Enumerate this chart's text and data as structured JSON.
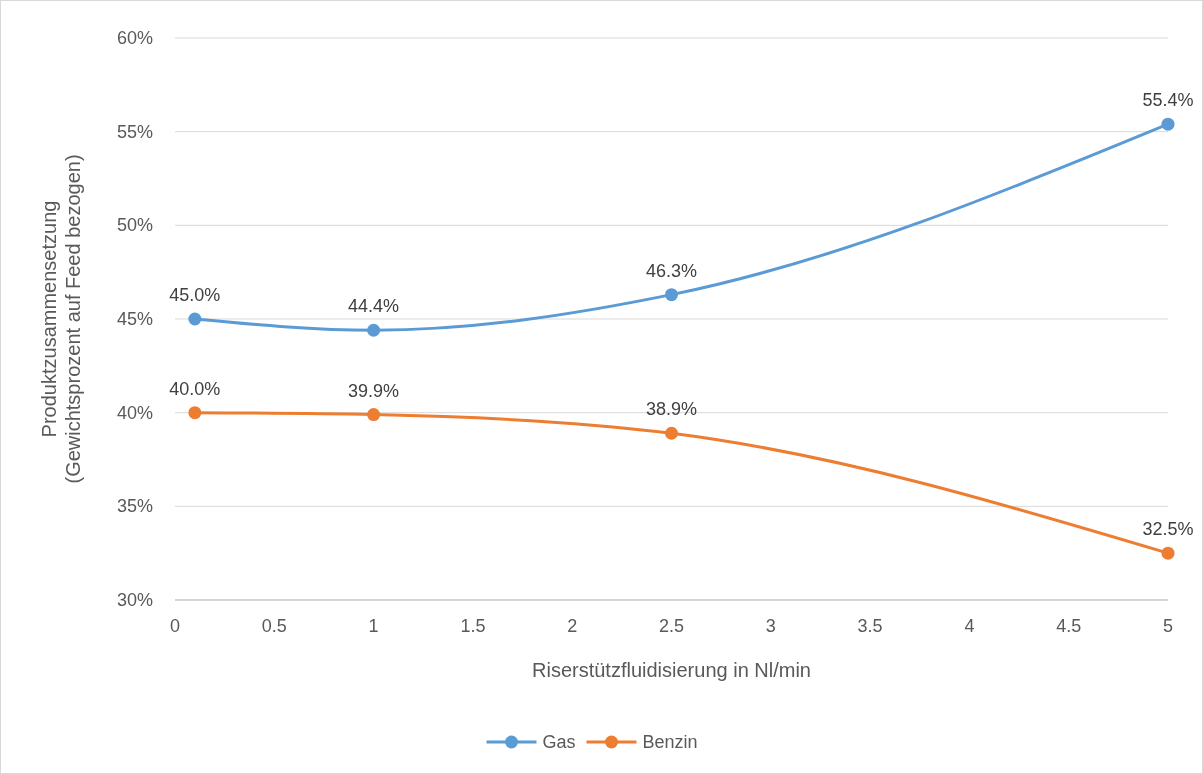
{
  "chart_data": {
    "type": "line",
    "xlabel": "Riserstützfluidisierung in Nl/min",
    "ylabel": "Produktzusammensetzung\n(Gewichtsprozent auf Feed bezogen)",
    "x": [
      0.1,
      1,
      2.5,
      5
    ],
    "series": [
      {
        "name": "Gas",
        "color": "#5b9bd5",
        "values": [
          45.0,
          44.4,
          46.3,
          55.4
        ],
        "value_labels": [
          "45.0%",
          "44.4%",
          "46.3%",
          "55.4%"
        ]
      },
      {
        "name": "Benzin",
        "color": "#ed7d31",
        "values": [
          40.0,
          39.9,
          38.9,
          32.5
        ],
        "value_labels": [
          "40.0%",
          "39.9%",
          "38.9%",
          "32.5%"
        ]
      }
    ],
    "xlim": [
      0,
      5
    ],
    "xticks": [
      0,
      0.5,
      1,
      1.5,
      2,
      2.5,
      3,
      3.5,
      4,
      4.5,
      5
    ],
    "ylim": [
      30,
      60
    ],
    "yticks": [
      {
        "value": 30,
        "label": "30%"
      },
      {
        "value": 35,
        "label": "35%"
      },
      {
        "value": 40,
        "label": "40%"
      },
      {
        "value": 45,
        "label": "45%"
      },
      {
        "value": 50,
        "label": "50%"
      },
      {
        "value": 55,
        "label": "55%"
      },
      {
        "value": 60,
        "label": "60%"
      }
    ],
    "grid": "y",
    "legend": "bottom",
    "marker": "circle",
    "line_style": "solid"
  }
}
